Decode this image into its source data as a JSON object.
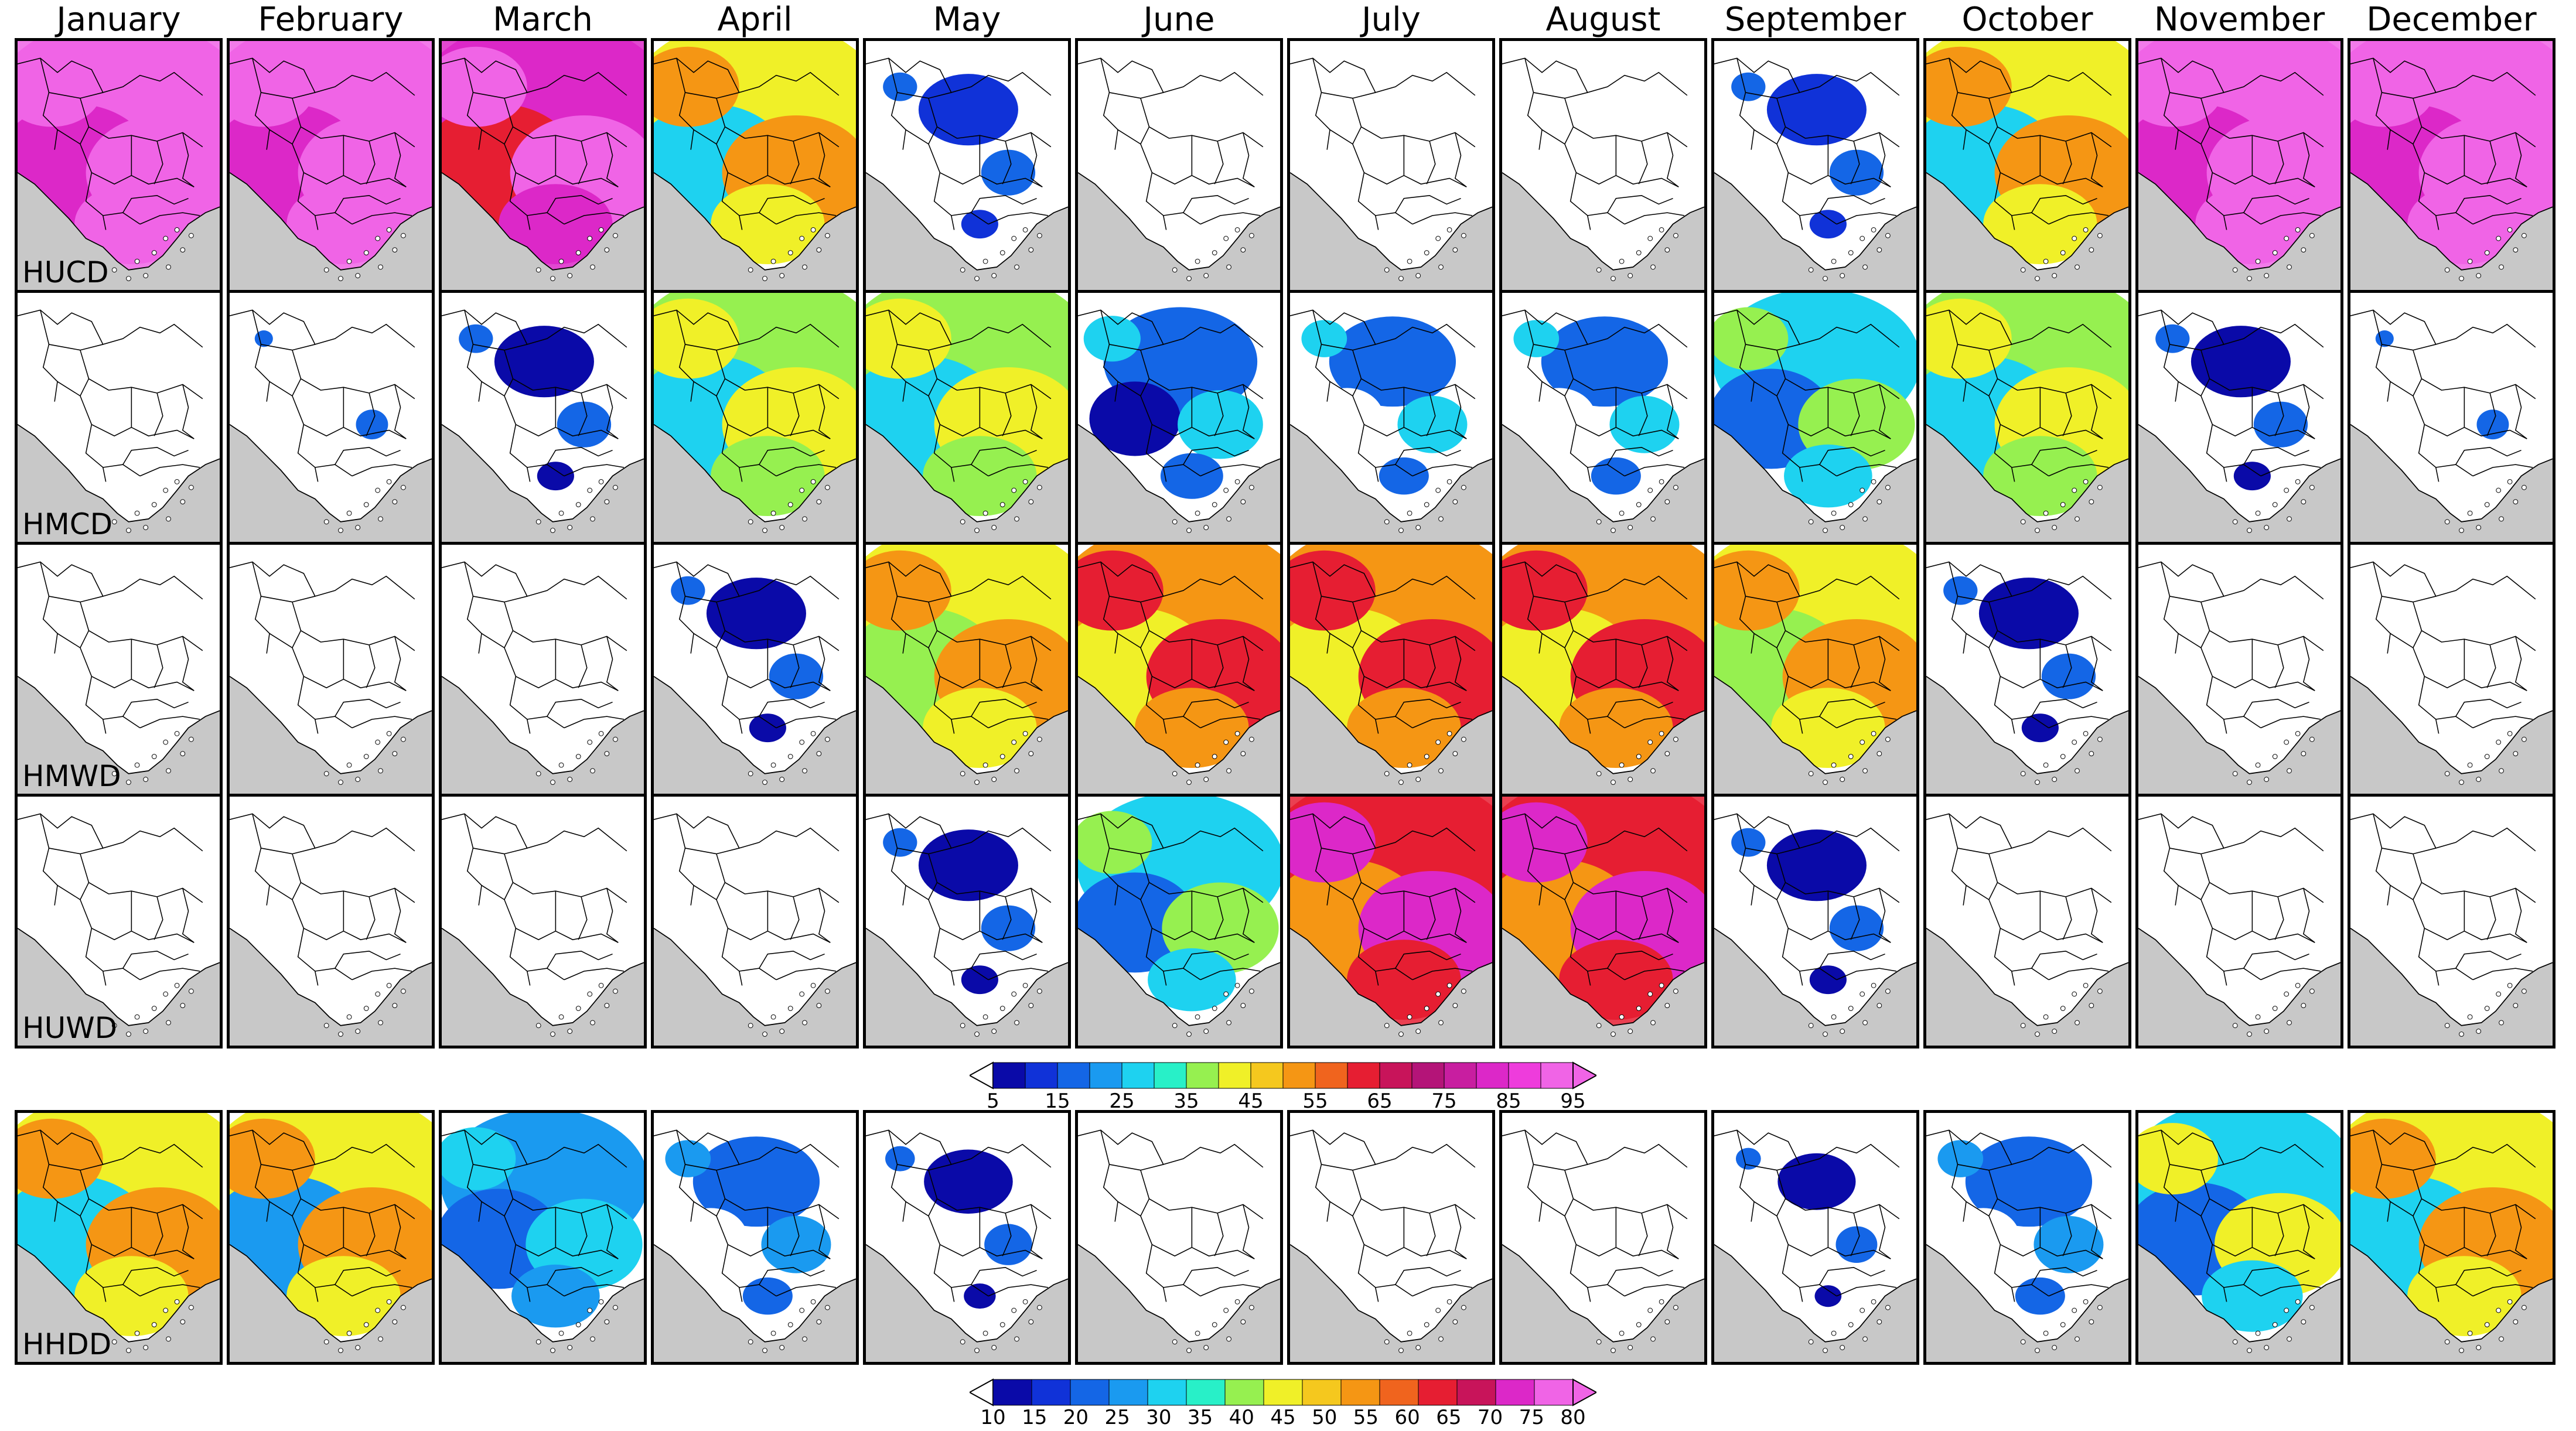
{
  "months": [
    "January",
    "February",
    "March",
    "April",
    "May",
    "June",
    "July",
    "August",
    "September",
    "October",
    "November",
    "December"
  ],
  "rows": [
    {
      "label": "HUCD",
      "levels": [
        8,
        8,
        7,
        4,
        1,
        0,
        0,
        0,
        1,
        4,
        8,
        8
      ],
      "hue": "pink"
    },
    {
      "label": "HMCD",
      "levels": [
        0,
        0.3,
        1,
        4,
        4,
        2,
        1.5,
        1.5,
        3,
        4,
        1,
        0.3
      ],
      "hue": "mixed"
    },
    {
      "label": "HMWD",
      "levels": [
        0,
        0,
        0,
        1,
        5,
        6,
        6,
        6,
        5,
        1,
        0,
        0
      ],
      "hue": "warm"
    },
    {
      "label": "HUWD",
      "levels": [
        0,
        0,
        0,
        0,
        1,
        3,
        7,
        7,
        1,
        0,
        0,
        0
      ],
      "hue": "hot"
    },
    {
      "label": "HHDD",
      "levels": [
        5,
        4.5,
        3,
        1.5,
        0.8,
        0,
        0,
        0,
        0.6,
        1.5,
        3.5,
        5
      ],
      "hue": "orange"
    }
  ],
  "colorbar1": {
    "ticks": [
      "5",
      "15",
      "25",
      "35",
      "45",
      "55",
      "65",
      "75",
      "85",
      "95"
    ],
    "colors": [
      "#0a0aa8",
      "#1032d8",
      "#1466e6",
      "#1a9af0",
      "#1ed2f0",
      "#28f0c8",
      "#96f050",
      "#f0f028",
      "#f5c81e",
      "#f59614",
      "#f0641e",
      "#e61e32",
      "#c8145a",
      "#b41478",
      "#c81ea0",
      "#dc28c8",
      "#ee3cdc",
      "#f064e6"
    ]
  },
  "colorbar2": {
    "ticks": [
      "10",
      "15",
      "20",
      "25",
      "30",
      "35",
      "40",
      "45",
      "50",
      "55",
      "60",
      "65",
      "70",
      "75",
      "80"
    ],
    "colors": [
      "#0a0aa8",
      "#1032d8",
      "#1466e6",
      "#1a9af0",
      "#1ed2f0",
      "#28f0c8",
      "#96f050",
      "#f0f028",
      "#f5c81e",
      "#f59614",
      "#f0641e",
      "#e61e32",
      "#c8145a",
      "#dc28c8",
      "#f064e6"
    ]
  }
}
